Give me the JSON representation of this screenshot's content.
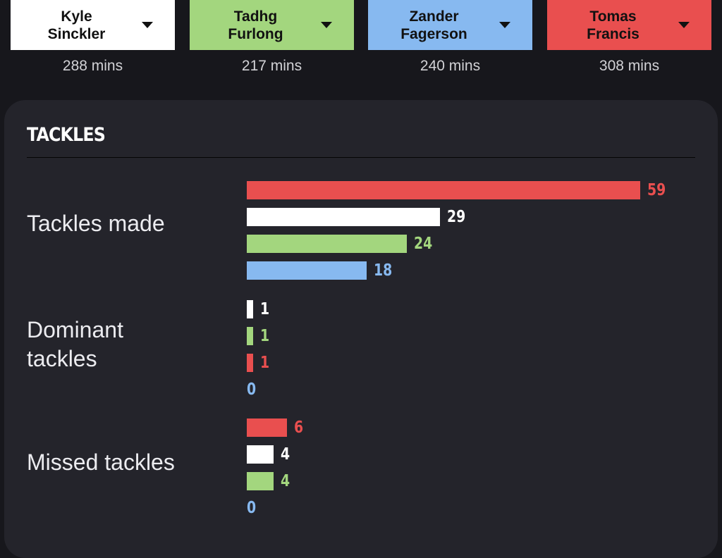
{
  "players": [
    {
      "name": "Kyle\nSinckler",
      "minutes": "288 mins",
      "color": "#ffffff"
    },
    {
      "name": "Tadhg\nFurlong",
      "minutes": "217 mins",
      "color": "#a3d67e"
    },
    {
      "name": "Zander\nFagerson",
      "minutes": "240 mins",
      "color": "#87b9f0"
    },
    {
      "name": "Tomas\nFrancis",
      "minutes": "308 mins",
      "color": "#e94f4f"
    }
  ],
  "section": {
    "title": "TACKLES",
    "max_value": 59,
    "rows": [
      {
        "label": "Tackles made",
        "bars": [
          {
            "player": "Tomas Francis",
            "value": 59,
            "color": "#e94f4f"
          },
          {
            "player": "Kyle Sinckler",
            "value": 29,
            "color": "#ffffff"
          },
          {
            "player": "Tadhg Furlong",
            "value": 24,
            "color": "#a3d67e"
          },
          {
            "player": "Zander Fagerson",
            "value": 18,
            "color": "#87b9f0"
          }
        ]
      },
      {
        "label": "Dominant\ntackles",
        "bars": [
          {
            "player": "Kyle Sinckler",
            "value": 1,
            "color": "#ffffff"
          },
          {
            "player": "Tadhg Furlong",
            "value": 1,
            "color": "#a3d67e"
          },
          {
            "player": "Tomas Francis",
            "value": 1,
            "color": "#e94f4f"
          },
          {
            "player": "Zander Fagerson",
            "value": 0,
            "color": "#87b9f0"
          }
        ]
      },
      {
        "label": "Missed tackles",
        "bars": [
          {
            "player": "Tomas Francis",
            "value": 6,
            "color": "#e94f4f"
          },
          {
            "player": "Kyle Sinckler",
            "value": 4,
            "color": "#ffffff"
          },
          {
            "player": "Tadhg Furlong",
            "value": 4,
            "color": "#a3d67e"
          },
          {
            "player": "Zander Fagerson",
            "value": 0,
            "color": "#87b9f0"
          }
        ]
      }
    ]
  }
}
